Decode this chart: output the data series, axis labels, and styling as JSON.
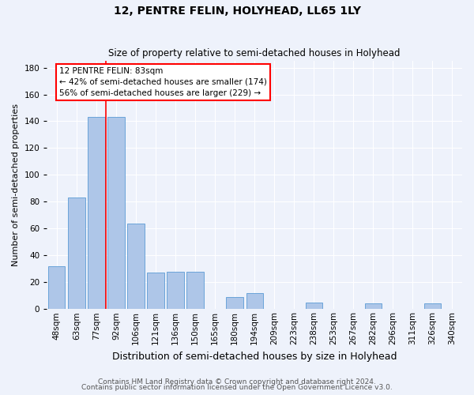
{
  "title": "12, PENTRE FELIN, HOLYHEAD, LL65 1LY",
  "subtitle": "Size of property relative to semi-detached houses in Holyhead",
  "xlabel": "Distribution of semi-detached houses by size in Holyhead",
  "ylabel": "Number of semi-detached properties",
  "categories": [
    "48sqm",
    "63sqm",
    "77sqm",
    "92sqm",
    "106sqm",
    "121sqm",
    "136sqm",
    "150sqm",
    "165sqm",
    "180sqm",
    "194sqm",
    "209sqm",
    "223sqm",
    "238sqm",
    "253sqm",
    "267sqm",
    "282sqm",
    "296sqm",
    "311sqm",
    "326sqm",
    "340sqm"
  ],
  "values": [
    32,
    83,
    143,
    143,
    64,
    27,
    28,
    28,
    0,
    9,
    12,
    0,
    0,
    5,
    0,
    0,
    4,
    0,
    0,
    4,
    0
  ],
  "bar_color": "#aec6e8",
  "bar_edge_color": "#5b9bd5",
  "red_line_index": 2.5,
  "property_label": "12 PENTRE FELIN: 83sqm",
  "pct_smaller": 42,
  "count_smaller": 174,
  "pct_larger": 56,
  "count_larger": 229,
  "ylim": [
    0,
    185
  ],
  "yticks": [
    0,
    20,
    40,
    60,
    80,
    100,
    120,
    140,
    160,
    180
  ],
  "footer_line1": "Contains HM Land Registry data © Crown copyright and database right 2024.",
  "footer_line2": "Contains public sector information licensed under the Open Government Licence v3.0.",
  "background_color": "#eef2fb",
  "grid_color": "#ffffff",
  "title_fontsize": 10,
  "subtitle_fontsize": 8.5,
  "ylabel_fontsize": 8,
  "xlabel_fontsize": 9,
  "tick_fontsize": 7.5,
  "footer_fontsize": 6.5,
  "annot_fontsize": 7.5
}
